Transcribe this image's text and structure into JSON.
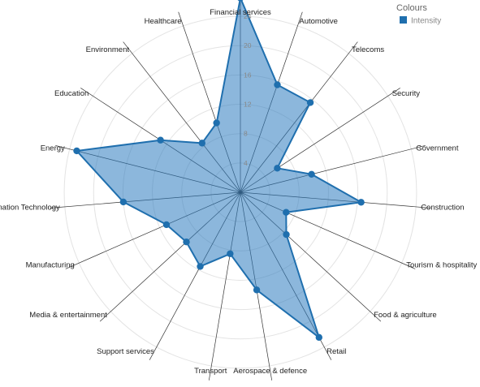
{
  "chart_data": {
    "type": "radar",
    "categories": [
      "Financial services",
      "Automotive",
      "Telecoms",
      "Security",
      "Government",
      "Construction",
      "Tourism & hospitality",
      "Food & agriculture",
      "Retail",
      "Aerospace & defence",
      "Transport",
      "Support services",
      "Media & entertainment",
      "Manufacturing",
      "Information Technology",
      "Energy",
      "Education",
      "Environment",
      "Healthcare"
    ],
    "series": [
      {
        "name": "Intensity",
        "color": "#1f6fae",
        "fill": "#2e7bbf",
        "values": [
          26.5,
          15.5,
          15.5,
          6,
          10,
          16.5,
          6.8,
          8.5,
          22.5,
          13.5,
          8.5,
          11.5,
          10,
          11,
          16,
          23,
          13,
          8.5,
          10
        ]
      }
    ],
    "rlim": [
      0,
      26
    ],
    "ticks": [
      "4",
      "8",
      "12",
      "16",
      "20",
      "24"
    ],
    "grid": true,
    "legend": {
      "title": "Colours",
      "position": "top-right",
      "labels": [
        "Intensity"
      ]
    }
  }
}
